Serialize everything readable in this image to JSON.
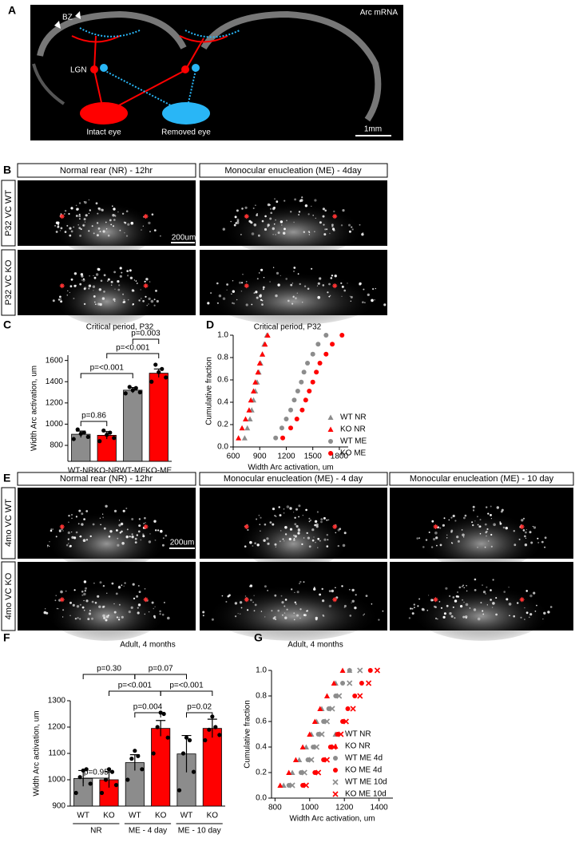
{
  "panel_labels": [
    "A",
    "B",
    "C",
    "D",
    "E",
    "F",
    "G"
  ],
  "figure_a": {
    "title": "Arc mRNA",
    "labels": [
      "BZ",
      "LGN",
      "Intact eye",
      "Removed eye"
    ],
    "scale_bar": "1mm"
  },
  "figure_b": {
    "columns": [
      "Normal rear (NR) - 12hr",
      "Monocular enucleation (ME) - 4day"
    ],
    "rows": [
      "P32 VC WT",
      "P32 VC KO"
    ],
    "scale_bar": "200um"
  },
  "figure_e": {
    "columns": [
      "Normal rear (NR) - 12hr",
      "Monocular enucleation (ME) - 4 day",
      "Monocular enucleation (ME) - 10 day"
    ],
    "rows": [
      "4mo VC WT",
      "4mo VC KO"
    ],
    "scale_bar": "200um"
  },
  "chart_data": [
    {
      "type": "bar",
      "title": "Critical period, P32",
      "ylabel": "Width Arc activation, um",
      "categories": [
        "WT-NR",
        "KO-NR",
        "WT-ME",
        "KO-ME"
      ],
      "values": [
        905,
        895,
        1320,
        1480
      ],
      "errors": [
        30,
        35,
        25,
        40
      ],
      "colors": [
        "#8c8c8c",
        "#ff0000",
        "#8c8c8c",
        "#ff0000"
      ],
      "points": [
        [
          860,
          880,
          950,
          920,
          910
        ],
        [
          840,
          870,
          940,
          920,
          900
        ],
        [
          1290,
          1300,
          1350,
          1340,
          1320
        ],
        [
          1400,
          1440,
          1560,
          1520,
          1490
        ]
      ],
      "ylim": [
        650,
        1650
      ],
      "yticks": [
        800,
        1000,
        1200,
        1400,
        1600
      ],
      "annotations": [
        "p=0.86",
        "p=<0.001",
        "p=<0.001",
        "p=0.003"
      ]
    },
    {
      "type": "scatter",
      "title": "Critical period, P32",
      "xlabel": "Width Arc activation, um",
      "ylabel": "Cumulative fraction",
      "xlim": [
        600,
        1900
      ],
      "xticks": [
        600,
        900,
        1200,
        1500,
        1800
      ],
      "ylim": [
        0,
        1
      ],
      "yticks": [
        {
          "value": 0,
          "label": "0.0"
        },
        0.2,
        0.4,
        0.6,
        0.8,
        {
          "value": 1,
          "label": "1.0"
        }
      ],
      "series": [
        {
          "name": "WT NR",
          "color": "#8c8c8c",
          "marker": "triangle",
          "x": [
            730,
            760,
            790,
            810,
            830,
            850,
            870,
            890,
            910,
            930,
            950,
            980
          ],
          "values": [
            0.08,
            0.17,
            0.25,
            0.33,
            0.42,
            0.5,
            0.58,
            0.67,
            0.75,
            0.83,
            0.92,
            1.0
          ]
        },
        {
          "name": "KO NR",
          "color": "#ff0000",
          "marker": "triangle",
          "x": [
            660,
            700,
            740,
            780,
            800,
            830,
            850,
            880,
            900,
            930,
            960,
            990
          ],
          "values": [
            0.08,
            0.17,
            0.25,
            0.33,
            0.42,
            0.5,
            0.58,
            0.67,
            0.75,
            0.83,
            0.92,
            1.0
          ]
        },
        {
          "name": "WT ME",
          "color": "#8c8c8c",
          "marker": "circle",
          "x": [
            1080,
            1150,
            1200,
            1250,
            1290,
            1330,
            1370,
            1400,
            1440,
            1500,
            1560,
            1650
          ],
          "values": [
            0.08,
            0.17,
            0.25,
            0.33,
            0.42,
            0.5,
            0.58,
            0.67,
            0.75,
            0.83,
            0.92,
            1.0
          ]
        },
        {
          "name": "KO ME",
          "color": "#ff0000",
          "marker": "circle",
          "x": [
            1160,
            1250,
            1320,
            1380,
            1420,
            1460,
            1500,
            1540,
            1580,
            1650,
            1720,
            1830
          ],
          "values": [
            0.08,
            0.17,
            0.25,
            0.33,
            0.42,
            0.5,
            0.58,
            0.67,
            0.75,
            0.83,
            0.92,
            1.0
          ]
        }
      ]
    },
    {
      "type": "bar",
      "title": "Adult, 4 months",
      "ylabel": "Width Arc activation, um",
      "categories": [
        "WT",
        "KO",
        "WT",
        "KO",
        "WT",
        "KO"
      ],
      "groups": [
        "NR",
        "ME - 4 day",
        "ME - 10 day"
      ],
      "values": [
        1005,
        1000,
        1065,
        1195,
        1098,
        1195
      ],
      "errors": [
        30,
        30,
        30,
        30,
        70,
        35
      ],
      "colors": [
        "#8c8c8c",
        "#ff0000",
        "#8c8c8c",
        "#ff0000",
        "#8c8c8c",
        "#ff0000"
      ],
      "points": [
        [
          950,
          985,
          1010,
          1040,
          1035
        ],
        [
          950,
          980,
          1000,
          1030,
          1040
        ],
        [
          1000,
          1040,
          1080,
          1090,
          1110
        ],
        [
          1100,
          1160,
          1200,
          1250,
          1255
        ],
        [
          960,
          1030,
          1100,
          1150,
          1160
        ],
        [
          1150,
          1170,
          1190,
          1200,
          1240
        ]
      ],
      "ylim": [
        900,
        1300
      ],
      "yticks": [
        900,
        1000,
        1100,
        1200,
        1300
      ],
      "annotations": [
        "p=0.95",
        "p=0.004",
        "p=0.02",
        "p=<0.001",
        "p=<0.001",
        "p=0.30",
        "p=0.07"
      ]
    },
    {
      "type": "scatter",
      "title": "Adult, 4 months",
      "xlabel": "Width Arc activation, um",
      "ylabel": "Cumulative fraction",
      "xlim": [
        780,
        1480
      ],
      "xticks": [
        800,
        1000,
        1200,
        1400
      ],
      "ylim": [
        0,
        1
      ],
      "yticks": [
        {
          "value": 0,
          "label": "0.0"
        },
        0.2,
        0.4,
        0.6,
        0.8,
        {
          "value": 1,
          "label": "1.0"
        }
      ],
      "series": [
        {
          "name": "WT NR",
          "color": "#8c8c8c",
          "marker": "triangle",
          "x": [
            850,
            900,
            940,
            980,
            1010,
            1040,
            1070,
            1100,
            1150,
            1230
          ],
          "values": [
            0.1,
            0.2,
            0.3,
            0.4,
            0.5,
            0.6,
            0.7,
            0.8,
            0.9,
            1.0
          ]
        },
        {
          "name": "KO NR",
          "color": "#ff0000",
          "marker": "triangle",
          "x": [
            830,
            880,
            920,
            960,
            1000,
            1030,
            1060,
            1100,
            1140,
            1190
          ],
          "values": [
            0.1,
            0.2,
            0.3,
            0.4,
            0.5,
            0.6,
            0.7,
            0.8,
            0.9,
            1.0
          ]
        },
        {
          "name": "WT ME 4d",
          "color": "#8c8c8c",
          "marker": "circle",
          "x": [
            880,
            950,
            990,
            1020,
            1050,
            1080,
            1110,
            1150,
            1190,
            1230
          ],
          "values": [
            0.1,
            0.2,
            0.3,
            0.4,
            0.5,
            0.6,
            0.7,
            0.8,
            0.9,
            1.0
          ]
        },
        {
          "name": "KO ME 4d",
          "color": "#ff0000",
          "marker": "circle",
          "x": [
            960,
            1030,
            1080,
            1120,
            1160,
            1190,
            1220,
            1260,
            1300,
            1350
          ],
          "values": [
            0.1,
            0.2,
            0.3,
            0.4,
            0.5,
            0.6,
            0.7,
            0.8,
            0.9,
            1.0
          ]
        },
        {
          "name": "WT ME 10d",
          "color": "#8c8c8c",
          "marker": "x",
          "x": [
            900,
            970,
            1010,
            1040,
            1070,
            1100,
            1130,
            1170,
            1230,
            1290
          ],
          "values": [
            0.1,
            0.2,
            0.3,
            0.4,
            0.5,
            0.6,
            0.7,
            0.8,
            0.9,
            1.0
          ]
        },
        {
          "name": "KO ME 10d",
          "color": "#ff0000",
          "marker": "x",
          "x": [
            980,
            1050,
            1100,
            1140,
            1180,
            1210,
            1250,
            1290,
            1340,
            1390
          ],
          "values": [
            0.1,
            0.2,
            0.3,
            0.4,
            0.5,
            0.6,
            0.7,
            0.8,
            0.9,
            1.0
          ]
        }
      ]
    }
  ]
}
